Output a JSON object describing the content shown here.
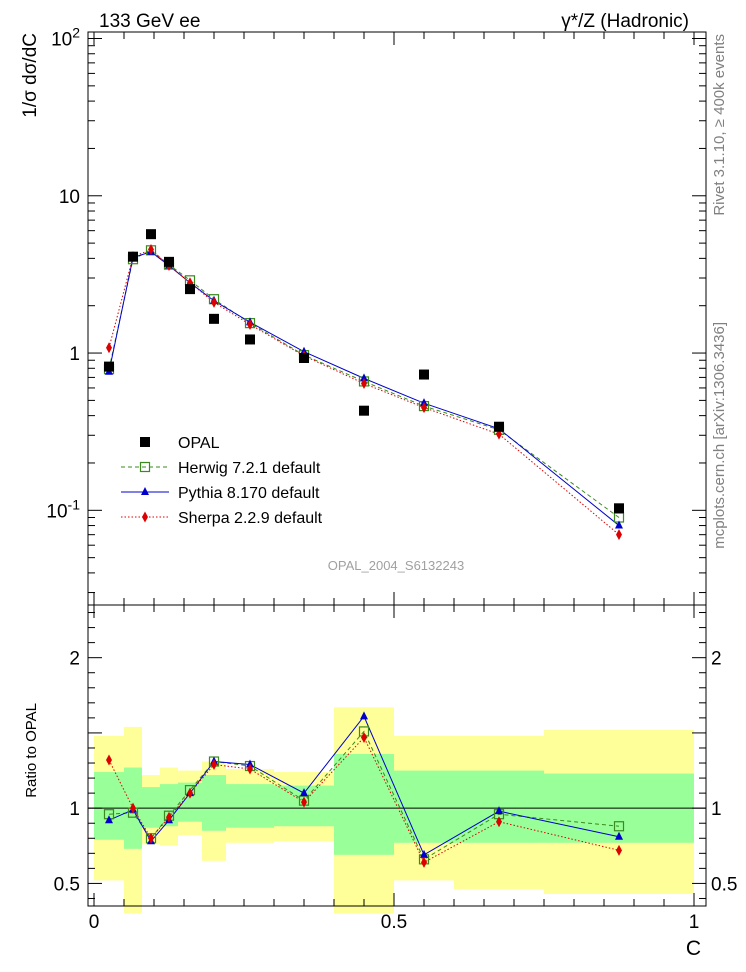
{
  "header": {
    "left": "133 GeV ee",
    "right": "γ*/Z (Hadronic)"
  },
  "side": {
    "rivet": "Rivet 3.1.10, ≥ 400k events",
    "mcplots": "mcplots.cern.ch [arXiv:1306.3436]"
  },
  "analysis_id": "OPAL_2004_S6132243",
  "chart_data": {
    "type": "scatter",
    "xlabel": "C",
    "ylabel_main": "1/σ dσ/dC",
    "ylabel_ratio": "Ratio to OPAL",
    "xlim": [
      -0.01,
      1.02
    ],
    "ylim_main": [
      0.025,
      110
    ],
    "yscale_main": "log",
    "ylim_ratio": [
      0.35,
      2.35
    ],
    "legend_position": "bottom-left",
    "x_ticks": [
      {
        "v": 0,
        "label": "0"
      },
      {
        "v": 0.5,
        "label": "0.5"
      },
      {
        "v": 1,
        "label": "1"
      }
    ],
    "y_ticks_main": [
      {
        "v": 100,
        "label": "10^2"
      },
      {
        "v": 10,
        "label": "10"
      },
      {
        "v": 1,
        "label": "1"
      },
      {
        "v": 0.1,
        "label": "10^-1"
      }
    ],
    "y_ticks_ratio": [
      {
        "v": 0.5,
        "label": "0.5"
      },
      {
        "v": 1,
        "label": "1"
      },
      {
        "v": 2,
        "label": "2"
      }
    ],
    "bins": [
      {
        "lo": 0.0,
        "hi": 0.05
      },
      {
        "lo": 0.05,
        "hi": 0.08
      },
      {
        "lo": 0.08,
        "hi": 0.11
      },
      {
        "lo": 0.11,
        "hi": 0.14
      },
      {
        "lo": 0.14,
        "hi": 0.18
      },
      {
        "lo": 0.18,
        "hi": 0.22
      },
      {
        "lo": 0.22,
        "hi": 0.3
      },
      {
        "lo": 0.3,
        "hi": 0.4
      },
      {
        "lo": 0.4,
        "hi": 0.5
      },
      {
        "lo": 0.5,
        "hi": 0.6
      },
      {
        "lo": 0.6,
        "hi": 0.75
      },
      {
        "lo": 0.75,
        "hi": 1.0
      }
    ],
    "band_inner": [
      {
        "lo": 0.79,
        "hi": 1.24
      },
      {
        "lo": 0.73,
        "hi": 1.27
      },
      {
        "lo": 0.87,
        "hi": 1.14
      },
      {
        "lo": 0.88,
        "hi": 1.16
      },
      {
        "lo": 0.91,
        "hi": 1.17
      },
      {
        "lo": 0.85,
        "hi": 1.22
      },
      {
        "lo": 0.87,
        "hi": 1.16
      },
      {
        "lo": 0.88,
        "hi": 1.15
      },
      {
        "lo": 0.69,
        "hi": 1.36
      },
      {
        "lo": 0.77,
        "hi": 1.25
      },
      {
        "lo": 0.77,
        "hi": 1.25
      },
      {
        "lo": 0.77,
        "hi": 1.23
      }
    ],
    "band_outer": [
      {
        "lo": 0.52,
        "hi": 1.48
      },
      {
        "lo": 0.3,
        "hi": 1.54
      },
      {
        "lo": 0.76,
        "hi": 1.22
      },
      {
        "lo": 0.75,
        "hi": 1.27
      },
      {
        "lo": 0.82,
        "hi": 1.25
      },
      {
        "lo": 0.65,
        "hi": 1.31
      },
      {
        "lo": 0.77,
        "hi": 1.26
      },
      {
        "lo": 0.78,
        "hi": 1.24
      },
      {
        "lo": 0.3,
        "hi": 1.67
      },
      {
        "lo": 0.52,
        "hi": 1.48
      },
      {
        "lo": 0.46,
        "hi": 1.48
      },
      {
        "lo": 0.43,
        "hi": 1.52
      }
    ],
    "opal": {
      "name": "OPAL",
      "color": "#000000",
      "x": [
        0.025,
        0.065,
        0.095,
        0.125,
        0.16,
        0.2,
        0.26,
        0.35,
        0.45,
        0.55,
        0.675,
        0.875
      ],
      "y": [
        0.82,
        4.1,
        5.7,
        3.8,
        2.55,
        1.65,
        1.22,
        0.93,
        0.43,
        0.73,
        0.34,
        0.103
      ]
    },
    "series": [
      {
        "name": "Herwig 7.2.1 default",
        "color": "#3a8a1e",
        "marker": "open-square",
        "line": "dashed",
        "x": [
          0.025,
          0.065,
          0.095,
          0.125,
          0.16,
          0.2,
          0.26,
          0.35,
          0.45,
          0.55,
          0.675,
          0.875
        ],
        "y": [
          0.79,
          3.95,
          4.5,
          3.65,
          2.9,
          2.2,
          1.55,
          0.97,
          0.66,
          0.46,
          0.325,
          0.09
        ],
        "ratio": [
          0.96,
          0.97,
          0.8,
          0.95,
          1.12,
          1.31,
          1.28,
          1.05,
          1.51,
          0.66,
          0.96,
          0.88
        ]
      },
      {
        "name": "Pythia 8.170 default",
        "color": "#0000cc",
        "marker": "filled-triangle",
        "line": "solid",
        "x": [
          0.025,
          0.065,
          0.095,
          0.125,
          0.16,
          0.2,
          0.26,
          0.35,
          0.45,
          0.55,
          0.675,
          0.875
        ],
        "y": [
          0.76,
          4.05,
          4.4,
          3.6,
          2.8,
          2.15,
          1.57,
          1.02,
          0.69,
          0.48,
          0.33,
          0.08
        ],
        "ratio": [
          0.92,
          0.99,
          0.78,
          0.92,
          1.1,
          1.31,
          1.29,
          1.1,
          1.61,
          0.69,
          0.98,
          0.81
        ]
      },
      {
        "name": "Sherpa 2.2.9 default",
        "color": "#dd0000",
        "marker": "filled-diamond",
        "line": "dotted",
        "x": [
          0.025,
          0.065,
          0.095,
          0.125,
          0.16,
          0.2,
          0.26,
          0.35,
          0.45,
          0.55,
          0.675,
          0.875
        ],
        "y": [
          1.08,
          4.1,
          4.55,
          3.6,
          2.8,
          2.1,
          1.52,
          0.96,
          0.64,
          0.45,
          0.305,
          0.07
        ],
        "ratio": [
          1.32,
          1.0,
          0.8,
          0.94,
          1.1,
          1.29,
          1.26,
          1.04,
          1.47,
          0.64,
          0.91,
          0.72
        ]
      }
    ]
  }
}
